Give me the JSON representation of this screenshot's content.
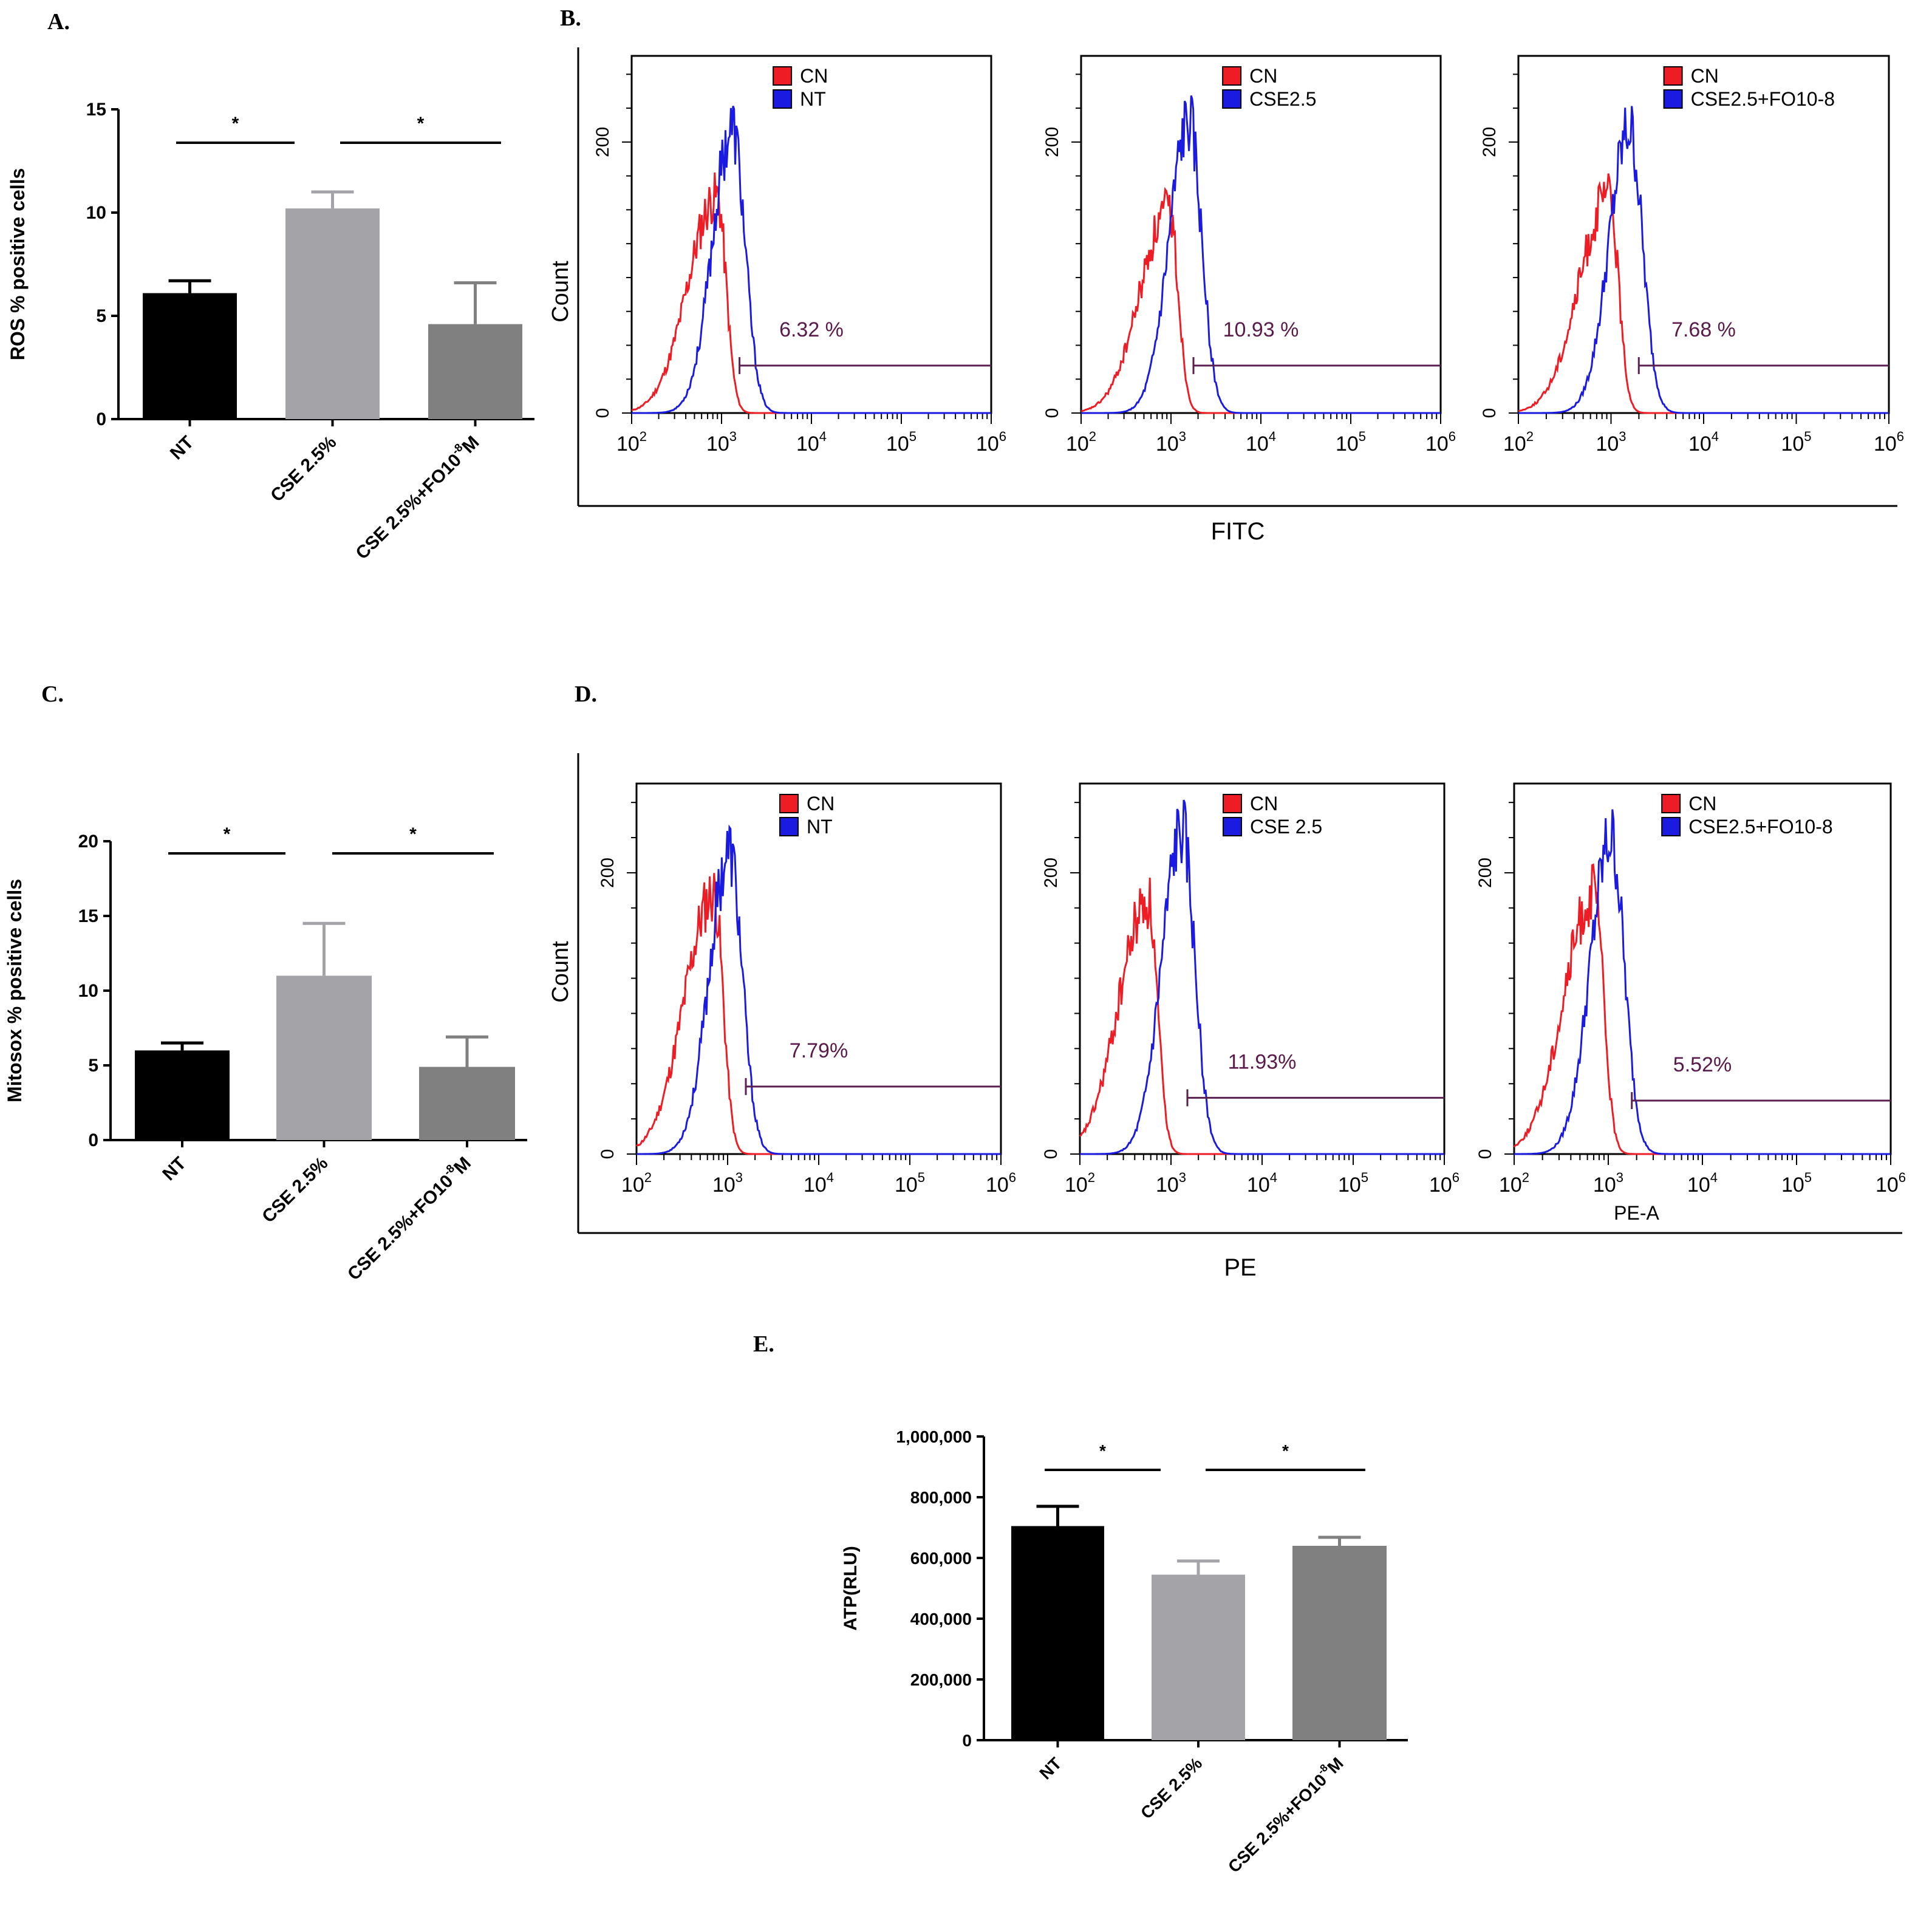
{
  "panel_labels": {
    "a": "A.",
    "b": "B.",
    "c": "C.",
    "d": "D.",
    "e": "E."
  },
  "colors": {
    "nt": "#000000",
    "cse": "#a3a3a8",
    "fo": "#808080",
    "cn": "#ee1c24",
    "sample": "#1a1ae0",
    "gate": "#5a2050",
    "pct": "#5a1a4a"
  },
  "chart_data": [
    {
      "id": "A",
      "type": "bar",
      "ylabel": "ROS % positive cells",
      "categories": [
        "NT",
        "CSE 2.5%",
        "CSE 2.5%+FO10"
      ],
      "category_suffix": {
        "sup": "-8",
        "after": "M"
      },
      "values": [
        6.1,
        10.2,
        4.6
      ],
      "errors": [
        0.6,
        0.8,
        2.0
      ],
      "ylim": [
        0,
        15
      ],
      "yticks": [
        "0",
        "5",
        "10",
        "15"
      ],
      "significance": [
        {
          "from": 0,
          "to": 1,
          "label": "*"
        },
        {
          "from": 1,
          "to": 2,
          "label": "*"
        }
      ]
    },
    {
      "id": "C",
      "type": "bar",
      "ylabel": "Mitosox % positive cells",
      "categories": [
        "NT",
        "CSE 2.5%",
        "CSE 2.5%+FO10"
      ],
      "category_suffix": {
        "sup": "-8",
        "after": "M"
      },
      "values": [
        6.0,
        11.0,
        4.9
      ],
      "errors": [
        0.5,
        3.5,
        2.0
      ],
      "ylim": [
        0,
        20
      ],
      "yticks": [
        "0",
        "5",
        "10",
        "15",
        "20"
      ],
      "significance": [
        {
          "from": 0,
          "to": 1,
          "label": "*"
        },
        {
          "from": 1,
          "to": 2,
          "label": "*"
        }
      ]
    },
    {
      "id": "E",
      "type": "bar",
      "ylabel": "ATP(RLU)",
      "categories": [
        "NT",
        "CSE 2.5%",
        "CSE 2.5%+FO10"
      ],
      "category_suffix": {
        "sup": "-8",
        "after": "M"
      },
      "values": [
        705000,
        545000,
        640000
      ],
      "errors": [
        65000,
        45000,
        28000
      ],
      "ylim": [
        0,
        1000000
      ],
      "yticks": [
        "0",
        "200,000",
        "400,000",
        "600,000",
        "800,000",
        "1,000,000"
      ],
      "significance": [
        {
          "from": 0,
          "to": 1,
          "label": "*"
        },
        {
          "from": 1,
          "to": 2,
          "label": "*"
        }
      ]
    },
    {
      "id": "B",
      "type": "histogram",
      "xlabel": "FITC",
      "ylabel": "Count",
      "xscale": "log",
      "xlim": [
        100,
        1000000
      ],
      "y_ticks": [
        "0",
        "200"
      ],
      "ymax": 260,
      "panels": [
        {
          "legend": [
            "CN",
            "NT"
          ],
          "percent": "6.32 %",
          "cn_peak": [
            2.95,
            160
          ],
          "sample_peak": [
            3.12,
            210
          ],
          "gate": {
            "x": [
              3.2,
              6.0
            ],
            "y": 35
          }
        },
        {
          "legend": [
            "CN",
            "CSE2.5"
          ],
          "percent": "10.93 %",
          "cn_peak": [
            2.98,
            150
          ],
          "sample_peak": [
            3.2,
            215
          ],
          "gate": {
            "x": [
              3.25,
              6.0
            ],
            "y": 35
          }
        },
        {
          "legend": [
            "CN",
            "CSE2.5+FO10-8"
          ],
          "percent": "7.68 %",
          "cn_peak": [
            2.98,
            160
          ],
          "sample_peak": [
            3.2,
            210
          ],
          "gate": {
            "x": [
              3.3,
              6.0
            ],
            "y": 35
          }
        }
      ]
    },
    {
      "id": "D",
      "type": "histogram",
      "xlabel": "PE",
      "ylabel": "Count",
      "xscale": "log",
      "xlim": [
        100,
        1000000
      ],
      "y_ticks": [
        "0",
        "200"
      ],
      "ymax": 260,
      "panels": [
        {
          "legend": [
            "CN",
            "NT"
          ],
          "percent": "7.79%",
          "cn_peak": [
            2.85,
            185
          ],
          "sample_peak": [
            3.02,
            215
          ],
          "gate": {
            "x": [
              3.2,
              6.0
            ],
            "y": 48
          },
          "axis_label": ""
        },
        {
          "legend": [
            "CN",
            "CSE 2.5"
          ],
          "percent": "11.93%",
          "cn_peak": [
            2.75,
            180
          ],
          "sample_peak": [
            3.12,
            230
          ],
          "gate": {
            "x": [
              3.18,
              6.0
            ],
            "y": 40
          },
          "axis_label": ""
        },
        {
          "legend": [
            "CN",
            "CSE2.5+FO10-8"
          ],
          "percent": "5.52%",
          "cn_peak": [
            2.85,
            185
          ],
          "sample_peak": [
            3.03,
            225
          ],
          "gate": {
            "x": [
              3.25,
              6.0
            ],
            "y": 38
          },
          "axis_label": "PE-A"
        }
      ]
    }
  ]
}
